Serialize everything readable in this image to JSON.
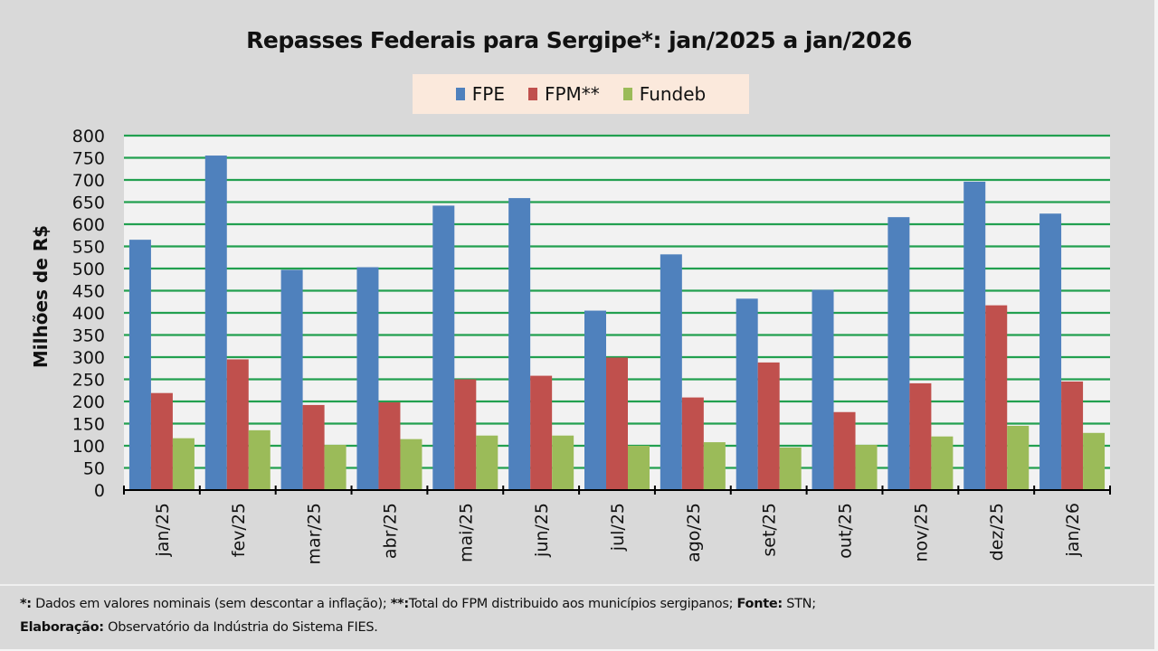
{
  "chart_data": {
    "type": "bar",
    "title": "Repasses Federais para Sergipe*: jan/2025 a jan/2026",
    "xlabel": "",
    "ylabel": "Milhões de R$",
    "ylim": [
      0,
      800
    ],
    "ytick_step": 50,
    "yticks": [
      "0",
      "50",
      "100",
      "150",
      "200",
      "250",
      "300",
      "350",
      "400",
      "450",
      "500",
      "550",
      "600",
      "650",
      "700",
      "750",
      "800"
    ],
    "grid": true,
    "legend_position": "top-center",
    "categories": [
      "jan/25",
      "fev/25",
      "mar/25",
      "abr/25",
      "mai/25",
      "jun/25",
      "jul/25",
      "ago/25",
      "set/25",
      "out/25",
      "nov/25",
      "dez/25",
      "jan/26"
    ],
    "series": [
      {
        "name": "FPE",
        "color": "#4f81bd",
        "values": [
          565,
          755,
          497,
          503,
          642,
          659,
          405,
          532,
          432,
          452,
          616,
          696,
          624
        ]
      },
      {
        "name": "FPM**",
        "color": "#c0504d",
        "values": [
          219,
          295,
          192,
          198,
          250,
          258,
          299,
          209,
          288,
          176,
          241,
          417,
          245
        ]
      },
      {
        "name": "Fundeb",
        "color": "#9bbb59",
        "values": [
          117,
          135,
          102,
          115,
          123,
          123,
          100,
          108,
          96,
          102,
          121,
          145,
          129
        ]
      }
    ],
    "colors": {
      "gridline": "#22a050",
      "plot_bg": "#f2f2f2",
      "axis": "#000000"
    }
  },
  "footer": {
    "line1_mark1": "*:",
    "line1_text1": " Dados em valores nominais (sem descontar a inflação); ",
    "line1_mark2": "**:",
    "line1_text2": "Total  do FPM distribuido aos municípios sergipanos; ",
    "line1_mark3": "Fonte:",
    "line1_text3": " STN;",
    "line2_mark": "Elaboração:",
    "line2_text": " Observatório da Indústria do Sistema FIES."
  }
}
